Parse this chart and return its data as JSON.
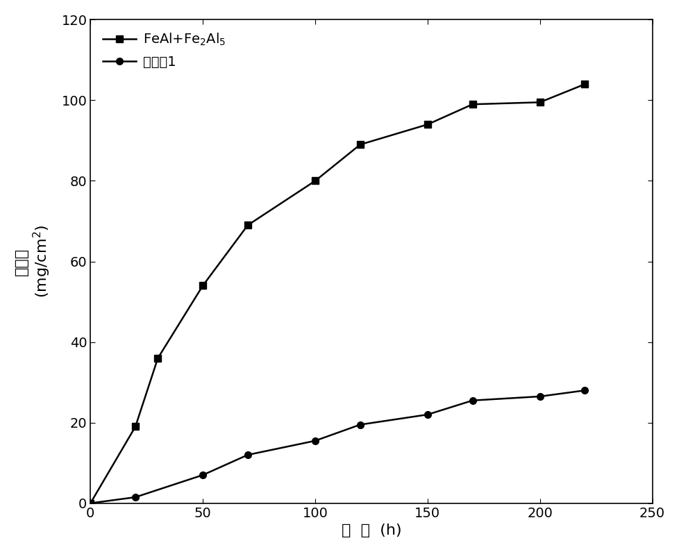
{
  "series1_x": [
    0,
    20,
    30,
    50,
    70,
    100,
    120,
    150,
    170,
    200,
    220
  ],
  "series1_y": [
    0,
    19,
    36,
    54,
    69,
    80,
    89,
    94,
    99,
    99.5,
    104
  ],
  "series2_x": [
    0,
    20,
    50,
    70,
    100,
    120,
    150,
    170,
    200,
    220
  ],
  "series2_y": [
    0,
    1.5,
    7,
    12,
    15.5,
    19.5,
    22,
    25.5,
    26.5,
    28
  ],
  "xlim": [
    0,
    250
  ],
  "ylim": [
    0,
    120
  ],
  "xticks": [
    0,
    50,
    100,
    150,
    200,
    250
  ],
  "yticks": [
    0,
    20,
    40,
    60,
    80,
    100,
    120
  ],
  "line_color": "#000000",
  "marker_size": 7,
  "linewidth": 1.8,
  "background_color": "#ffffff",
  "legend1": "FeAl+Fe$_2$Al$_5$",
  "legend2_cn": "实施例1",
  "xlabel_cn": "时  间",
  "xlabel_unit": "  (h)",
  "ylabel_cn": "增重量",
  "ylabel_unit": "(mg/cm$^2$)"
}
